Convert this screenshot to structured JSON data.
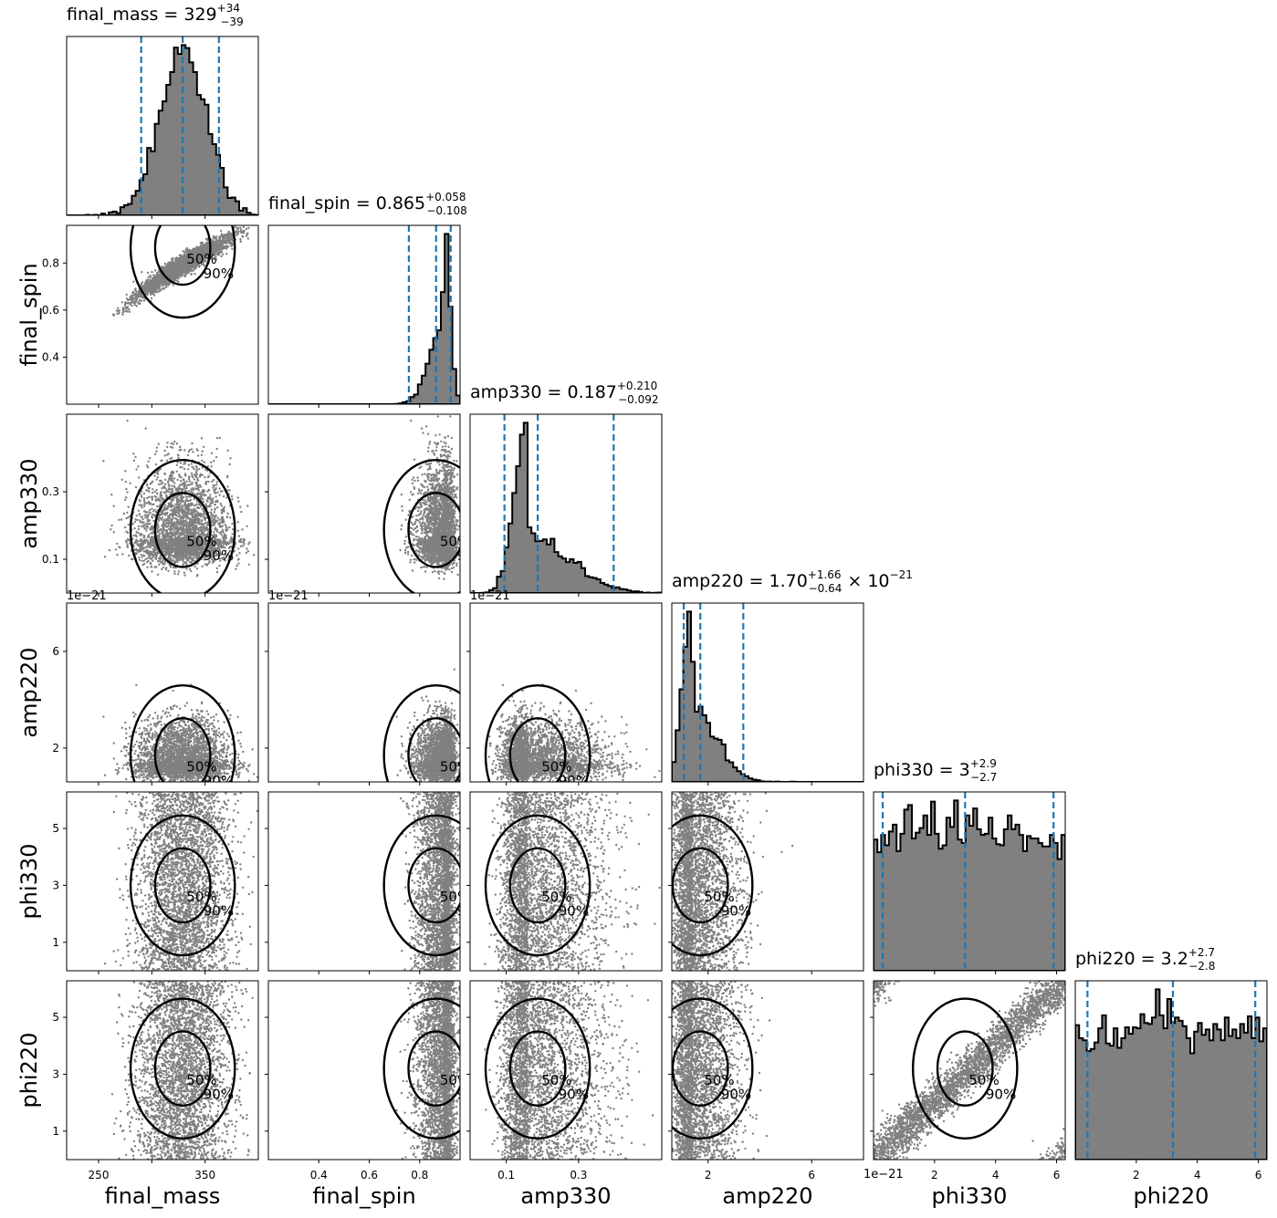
{
  "chart_data": {
    "type": "corner",
    "parameters": [
      {
        "name": "final_mass",
        "label": "final_mass",
        "range": [
          220,
          400
        ],
        "ticks": [
          250,
          300,
          350
        ],
        "tick_labels": [
          "250",
          "",
          "350"
        ],
        "median": 329,
        "lower": 290,
        "upper": 363,
        "title_value": "329",
        "title_plus": "+34",
        "title_minus": "−39",
        "title_suffix": "",
        "offset_text": ""
      },
      {
        "name": "final_spin",
        "label": "final_spin",
        "range": [
          0.2,
          0.96
        ],
        "ticks": [
          0.4,
          0.6,
          0.8
        ],
        "tick_labels": [
          "0.4",
          "0.6",
          "0.8"
        ],
        "median": 0.865,
        "lower": 0.757,
        "upper": 0.923,
        "title_value": "0.865",
        "title_plus": "+0.058",
        "title_minus": "−0.108",
        "title_suffix": "",
        "offset_text": ""
      },
      {
        "name": "amp330",
        "label": "amp330",
        "range": [
          0.0,
          0.53
        ],
        "ticks": [
          0.1,
          0.3
        ],
        "tick_labels": [
          "0.1",
          "0.3"
        ],
        "median": 0.187,
        "lower": 0.095,
        "upper": 0.397,
        "title_value": "0.187",
        "title_plus": "+0.210",
        "title_minus": "−0.092",
        "title_suffix": "",
        "offset_text": ""
      },
      {
        "name": "amp220",
        "label": "amp220",
        "range": [
          0.6,
          8.0
        ],
        "ticks": [
          2,
          6
        ],
        "tick_labels": [
          "2",
          "6"
        ],
        "median": 1.7,
        "lower": 1.06,
        "upper": 3.36,
        "title_value": "1.70",
        "title_plus": "+1.66",
        "title_minus": "−0.64",
        "title_suffix": " × 10",
        "title_exp": "−21",
        "offset_text": "1e−21"
      },
      {
        "name": "phi330",
        "label": "phi330",
        "range": [
          0,
          6.283
        ],
        "ticks": [
          1,
          3,
          5
        ],
        "tick_labels": [
          "1",
          "3",
          "5"
        ],
        "xticks": [
          2,
          4,
          6
        ],
        "xtick_labels": [
          "2",
          "4",
          "6"
        ],
        "median": 3.0,
        "lower": 0.3,
        "upper": 5.9,
        "title_value": "3",
        "title_plus": "+2.9",
        "title_minus": "−2.7",
        "title_suffix": "",
        "offset_text": ""
      },
      {
        "name": "phi220",
        "label": "phi220",
        "range": [
          0,
          6.283
        ],
        "ticks": [
          1,
          3,
          5
        ],
        "tick_labels": [
          "1",
          "3",
          "5"
        ],
        "xticks": [
          2,
          4,
          6
        ],
        "xtick_labels": [
          "2",
          "4",
          "6"
        ],
        "median": 3.2,
        "lower": 0.4,
        "upper": 5.9,
        "title_value": "3.2",
        "title_plus": "+2.7",
        "title_minus": "−2.8",
        "title_suffix": "",
        "offset_text": ""
      }
    ],
    "histogram_shapes": [
      {
        "kind": "gaussian",
        "center": 329,
        "width": 22
      },
      {
        "kind": "skewed_left",
        "peak": 0.895,
        "left_width": 0.055,
        "right_width": 0.022
      },
      {
        "kind": "skewed_right",
        "peak": 0.16,
        "left_width": 0.035,
        "right_width": 0.11
      },
      {
        "kind": "skewed_right",
        "peak": 1.4,
        "left_width": 0.35,
        "right_width": 0.9
      },
      {
        "kind": "bimodal",
        "peaks": [
          1.0,
          4.0
        ]
      },
      {
        "kind": "bimodal",
        "peaks": [
          2.5,
          5.6
        ]
      }
    ],
    "contour_levels": [
      "50%",
      "90%"
    ],
    "colors": {
      "samples": "#808080",
      "hist_fill": "#808080",
      "hist_edge": "#000000",
      "quantile_line": "#1f77b4",
      "contour": "#000000"
    }
  }
}
